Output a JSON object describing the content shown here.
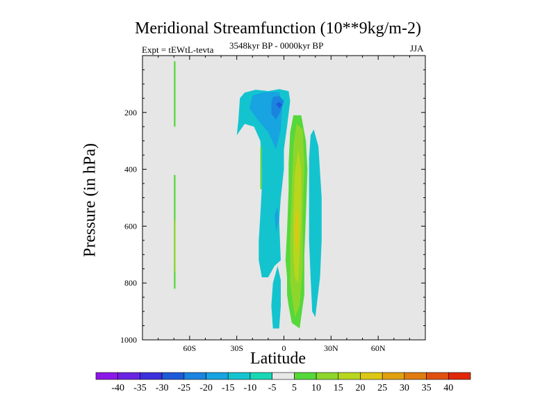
{
  "chart_data": {
    "type": "contour",
    "title": "Meridional Streamfunction (10**9kg/m-2)",
    "subtitle": "3548kyr BP - 0000kyr BP",
    "expt_label": "Expt = tEWtL-tevta",
    "season": "JJA",
    "xlabel": "Latitude",
    "ylabel": "Pressure (in hPa)",
    "xlim": [
      -90,
      90
    ],
    "ylim": [
      1000,
      0
    ],
    "x_ticks": [
      {
        "value": -60,
        "label": "60S"
      },
      {
        "value": -30,
        "label": "30S"
      },
      {
        "value": 0,
        "label": "0"
      },
      {
        "value": 30,
        "label": "30N"
      },
      {
        "value": 60,
        "label": "60N"
      }
    ],
    "y_ticks": [
      {
        "value": 200,
        "label": "200"
      },
      {
        "value": 400,
        "label": "400"
      },
      {
        "value": 600,
        "label": "600"
      },
      {
        "value": 800,
        "label": "800"
      },
      {
        "value": 1000,
        "label": "1000"
      }
    ],
    "background_color": "#e6e6e6",
    "colorbar": {
      "labels": [
        "-40",
        "-35",
        "-30",
        "-25",
        "-20",
        "-15",
        "-10",
        "-5",
        "5",
        "10",
        "15",
        "20",
        "25",
        "30",
        "35",
        "40"
      ],
      "colors": [
        "#8c18e8",
        "#6a24e2",
        "#3c30dc",
        "#1e5ad8",
        "#1a84de",
        "#17a4e0",
        "#13c4cf",
        "#18d8b4",
        "#e8e8e8",
        "#56d83a",
        "#8ed62c",
        "#b8d61e",
        "#dcc814",
        "#e0a010",
        "#e07c10",
        "#e05010",
        "#e02808"
      ]
    },
    "regions": [
      {
        "name": "neg-cell-upper-15",
        "level": -15,
        "points": [
          [
            -30,
            280
          ],
          [
            -29,
            230
          ],
          [
            -28,
            150
          ],
          [
            -25,
            130
          ],
          [
            -18,
            120
          ],
          [
            -10,
            125
          ],
          [
            -3,
            118
          ],
          [
            3,
            125
          ],
          [
            4,
            160
          ],
          [
            2,
            250
          ],
          [
            0,
            330
          ],
          [
            0,
            400
          ],
          [
            -2,
            500
          ],
          [
            -3,
            580
          ],
          [
            -2,
            720
          ],
          [
            -6,
            740
          ],
          [
            -10,
            780
          ],
          [
            -14,
            780
          ],
          [
            -16,
            720
          ],
          [
            -16,
            650
          ],
          [
            -15,
            560
          ],
          [
            -14,
            460
          ],
          [
            -14,
            380
          ],
          [
            -15,
            300
          ],
          [
            -19,
            250
          ],
          [
            -25,
            240
          ]
        ]
      },
      {
        "name": "neg-cell-upper-20",
        "level": -20,
        "points": [
          [
            -22,
            185
          ],
          [
            -20,
            140
          ],
          [
            -12,
            128
          ],
          [
            -3,
            128
          ],
          [
            -1,
            170
          ],
          [
            -2,
            260
          ],
          [
            -5,
            330
          ],
          [
            -10,
            270
          ],
          [
            -16,
            230
          ]
        ]
      },
      {
        "name": "neg-cell-upper-25",
        "level": -25,
        "points": [
          [
            -8,
            165
          ],
          [
            -7,
            145
          ],
          [
            -3,
            142
          ],
          [
            0,
            160
          ],
          [
            -2,
            195
          ],
          [
            -5,
            225
          ],
          [
            -8,
            205
          ]
        ]
      },
      {
        "name": "neg-cell-upper-30",
        "level": -30,
        "points": [
          [
            -5,
            170
          ],
          [
            -3,
            163
          ],
          [
            -1,
            173
          ],
          [
            -3,
            185
          ]
        ]
      },
      {
        "name": "neg-blob-mid-20",
        "level": -20,
        "points": [
          [
            -6,
            560
          ],
          [
            -4,
            530
          ],
          [
            -3,
            580
          ],
          [
            -5,
            620
          ]
        ]
      },
      {
        "name": "neg-lower-15",
        "level": -15,
        "points": [
          [
            -7,
            960
          ],
          [
            -8,
            880
          ],
          [
            -7,
            800
          ],
          [
            -4,
            740
          ],
          [
            -2,
            790
          ],
          [
            -2,
            880
          ],
          [
            -3,
            960
          ]
        ]
      },
      {
        "name": "pos-main-5",
        "level": 5,
        "points": [
          [
            2,
            780
          ],
          [
            1,
            720
          ],
          [
            2,
            620
          ],
          [
            3,
            470
          ],
          [
            3,
            380
          ],
          [
            4,
            270
          ],
          [
            6,
            210
          ],
          [
            11,
            210
          ],
          [
            14,
            300
          ],
          [
            15,
            400
          ],
          [
            14,
            560
          ],
          [
            13,
            700
          ],
          [
            13,
            840
          ],
          [
            10,
            960
          ],
          [
            5,
            940
          ],
          [
            3,
            880
          ],
          [
            2,
            840
          ]
        ]
      },
      {
        "name": "pos-main-10",
        "level": 10,
        "points": [
          [
            4,
            800
          ],
          [
            4,
            640
          ],
          [
            5,
            470
          ],
          [
            6,
            320
          ],
          [
            8,
            240
          ],
          [
            12,
            260
          ],
          [
            13,
            380
          ],
          [
            12,
            560
          ],
          [
            12,
            740
          ],
          [
            10,
            880
          ],
          [
            7,
            920
          ]
        ]
      },
      {
        "name": "pos-main-15",
        "level": 15,
        "points": [
          [
            6,
            700
          ],
          [
            6,
            560
          ],
          [
            7,
            420
          ],
          [
            9,
            330
          ],
          [
            11,
            400
          ],
          [
            11,
            560
          ],
          [
            10,
            700
          ],
          [
            9,
            800
          ],
          [
            7,
            780
          ]
        ]
      },
      {
        "name": "pos-main-20",
        "level": 20,
        "points": [
          [
            7,
            620
          ],
          [
            8,
            540
          ],
          [
            9,
            560
          ],
          [
            9,
            640
          ],
          [
            8,
            700
          ]
        ]
      },
      {
        "name": "neg-north-15",
        "level": -15,
        "points": [
          [
            16,
            360
          ],
          [
            17,
            280
          ],
          [
            19,
            260
          ],
          [
            22,
            320
          ],
          [
            24,
            500
          ],
          [
            24,
            650
          ],
          [
            23,
            780
          ],
          [
            20,
            920
          ],
          [
            18,
            900
          ],
          [
            17,
            780
          ],
          [
            16,
            650
          ],
          [
            16,
            500
          ]
        ]
      },
      {
        "name": "pos-60S-line-5",
        "level": 5,
        "points": [
          [
            -70,
            20
          ],
          [
            -69,
            20
          ],
          [
            -69,
            250
          ],
          [
            -70,
            250
          ]
        ]
      },
      {
        "name": "pos-60S-lower-5",
        "level": 5,
        "points": [
          [
            -70,
            420
          ],
          [
            -69,
            420
          ],
          [
            -69,
            820
          ],
          [
            -70,
            820
          ]
        ]
      },
      {
        "name": "pos-60S-lower-10",
        "level": 10,
        "points": [
          [
            -70,
            580
          ],
          [
            -69,
            580
          ],
          [
            -69,
            760
          ],
          [
            -70,
            760
          ]
        ]
      },
      {
        "name": "pos-15S-5",
        "level": 5,
        "points": [
          [
            -15,
            320
          ],
          [
            -14,
            320
          ],
          [
            -14,
            470
          ],
          [
            -15,
            470
          ]
        ]
      }
    ]
  }
}
